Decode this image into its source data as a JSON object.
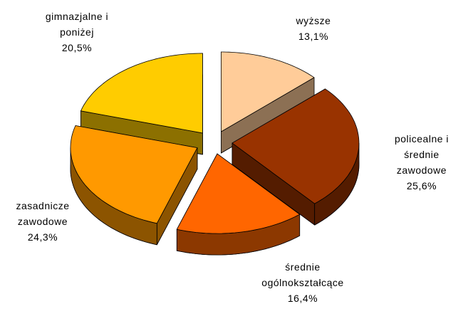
{
  "chart_data": {
    "type": "pie",
    "categories": [
      "wyższe",
      "policealne i średnie zawodowe",
      "średnie ogólnokształcące",
      "zasadnicze zawodowe",
      "gimnazjalne i poniżej"
    ],
    "values": [
      13.1,
      25.6,
      16.4,
      24.3,
      20.5
    ],
    "value_labels": [
      "13,1%",
      "25,6%",
      "16,4%",
      "24,3%",
      "20,5%"
    ],
    "colors": [
      "#FFCC99",
      "#993300",
      "#FF6600",
      "#FF9900",
      "#FFCC00"
    ]
  }
}
